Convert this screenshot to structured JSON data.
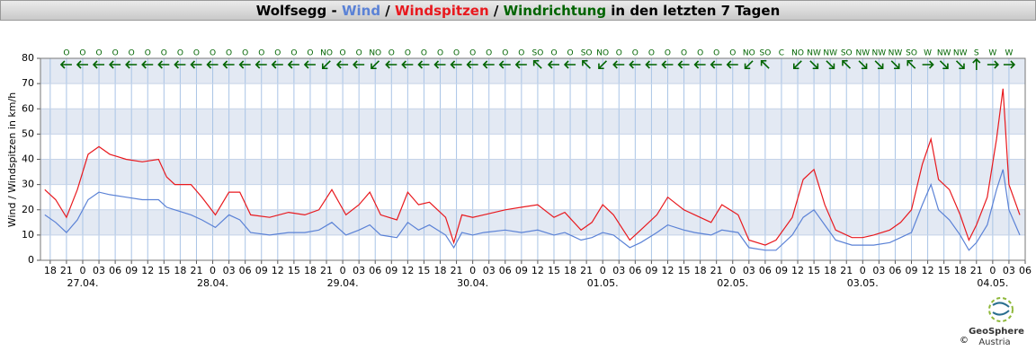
{
  "chart_data": {
    "type": "line",
    "title": [
      "Wolfsegg -",
      "Wind",
      "/",
      "Windspitzen",
      "/",
      "Windrichtung",
      "in den letzten 7 Tagen"
    ],
    "y_label": "Wind / Windspitzen in km/h",
    "x": [
      -7,
      -5,
      -3,
      -1,
      1,
      3,
      5,
      8,
      11,
      14,
      15.5,
      17,
      20,
      22,
      24.5,
      27,
      29,
      31,
      34.5,
      38,
      41,
      43.6,
      46,
      48.6,
      51,
      53,
      55,
      58,
      60,
      62,
      64,
      67,
      68.5,
      70,
      72,
      74,
      78,
      81,
      84,
      87,
      89,
      92,
      94,
      96,
      98,
      101,
      103,
      106,
      108,
      111,
      113,
      116,
      118,
      121,
      123,
      126,
      128,
      131,
      133,
      135,
      137,
      139,
      142,
      144,
      146,
      149,
      151,
      153,
      155,
      156.6,
      158,
      160,
      162,
      163.6,
      165,
      167,
      168.7,
      169.9,
      171,
      173
    ],
    "series": [
      {
        "name": "Wind",
        "color": "#5b82d6",
        "values": [
          18,
          15,
          11,
          16,
          24,
          27,
          26,
          25,
          24,
          24,
          21,
          20,
          18,
          16,
          13,
          18,
          16,
          11,
          10,
          11,
          11,
          12,
          15,
          10,
          12,
          14,
          10,
          9,
          15,
          12,
          14,
          10,
          5,
          11,
          10,
          11,
          12,
          11,
          12,
          10,
          11,
          8,
          9,
          11,
          10,
          5,
          7,
          11,
          14,
          12,
          11,
          10,
          12,
          11,
          5,
          4,
          4,
          10,
          17,
          20,
          14,
          8,
          6,
          6,
          6,
          7,
          9,
          11,
          22,
          30,
          20,
          16,
          10,
          4,
          7,
          14,
          28,
          36,
          20,
          10
        ]
      },
      {
        "name": "Windspitzen",
        "color": "#e8191e",
        "values": [
          28,
          24,
          17,
          28,
          42,
          45,
          42,
          40,
          39,
          40,
          33,
          30,
          30,
          25,
          18,
          27,
          27,
          18,
          17,
          19,
          18,
          20,
          28,
          18,
          22,
          27,
          18,
          16,
          27,
          22,
          23,
          17,
          7,
          18,
          17,
          18,
          20,
          21,
          22,
          17,
          19,
          12,
          15,
          22,
          18,
          8,
          12,
          18,
          25,
          20,
          18,
          15,
          22,
          18,
          8,
          6,
          8,
          17,
          32,
          36,
          22,
          12,
          9,
          9,
          10,
          12,
          15,
          20,
          38,
          48,
          32,
          28,
          18,
          8,
          14,
          25,
          48,
          68,
          30,
          18
        ]
      }
    ],
    "direction_name": "Windrichtung",
    "direction_color": "#006400",
    "directions": {
      "x": [
        -3,
        0,
        3,
        6,
        9,
        12,
        15,
        18,
        21,
        24,
        27,
        30,
        33,
        36,
        39,
        42,
        45,
        48,
        51,
        54,
        57,
        60,
        63,
        66,
        69,
        72,
        75,
        78,
        81,
        84,
        87,
        90,
        93,
        96,
        99,
        102,
        105,
        108,
        111,
        114,
        117,
        120,
        123,
        126,
        129,
        132,
        135,
        138,
        141,
        144,
        147,
        150,
        153,
        156,
        159,
        162,
        165,
        168,
        171
      ],
      "labels": [
        "O",
        "O",
        "O",
        "O",
        "O",
        "O",
        "O",
        "O",
        "O",
        "O",
        "O",
        "O",
        "O",
        "O",
        "O",
        "O",
        "NO",
        "O",
        "O",
        "NO",
        "O",
        "O",
        "O",
        "O",
        "O",
        "O",
        "O",
        "O",
        "O",
        "SO",
        "O",
        "O",
        "SO",
        "NO",
        "O",
        "O",
        "O",
        "O",
        "O",
        "O",
        "O",
        "O",
        "NO",
        "SO",
        "C",
        "NO",
        "NW",
        "NW",
        "SO",
        "NW",
        "NW",
        "NW",
        "SO",
        "W",
        "NW",
        "NW",
        "S",
        "W",
        "W"
      ]
    },
    "xlim": [
      -7.8,
      174
    ],
    "xticks": [
      {
        "value": -6,
        "label": "18"
      },
      {
        "value": -3,
        "label": "21"
      },
      {
        "value": 0,
        "label": "0"
      },
      {
        "value": 3,
        "label": "03"
      },
      {
        "value": 6,
        "label": "06"
      },
      {
        "value": 9,
        "label": "09"
      },
      {
        "value": 12,
        "label": "12"
      },
      {
        "value": 15,
        "label": "15"
      },
      {
        "value": 18,
        "label": "18"
      },
      {
        "value": 21,
        "label": "21"
      },
      {
        "value": 24,
        "label": "0"
      },
      {
        "value": 27,
        "label": "03"
      },
      {
        "value": 30,
        "label": "06"
      },
      {
        "value": 33,
        "label": "09"
      },
      {
        "value": 36,
        "label": "12"
      },
      {
        "value": 39,
        "label": "15"
      },
      {
        "value": 42,
        "label": "18"
      },
      {
        "value": 45,
        "label": "21"
      },
      {
        "value": 48,
        "label": "0"
      },
      {
        "value": 51,
        "label": "03"
      },
      {
        "value": 54,
        "label": "06"
      },
      {
        "value": 57,
        "label": "09"
      },
      {
        "value": 60,
        "label": "12"
      },
      {
        "value": 63,
        "label": "15"
      },
      {
        "value": 66,
        "label": "18"
      },
      {
        "value": 69,
        "label": "21"
      },
      {
        "value": 72,
        "label": "0"
      },
      {
        "value": 75,
        "label": "03"
      },
      {
        "value": 78,
        "label": "06"
      },
      {
        "value": 81,
        "label": "09"
      },
      {
        "value": 84,
        "label": "12"
      },
      {
        "value": 87,
        "label": "15"
      },
      {
        "value": 90,
        "label": "18"
      },
      {
        "value": 93,
        "label": "21"
      },
      {
        "value": 96,
        "label": "0"
      },
      {
        "value": 99,
        "label": "03"
      },
      {
        "value": 102,
        "label": "06"
      },
      {
        "value": 105,
        "label": "09"
      },
      {
        "value": 108,
        "label": "12"
      },
      {
        "value": 111,
        "label": "15"
      },
      {
        "value": 114,
        "label": "18"
      },
      {
        "value": 117,
        "label": "21"
      },
      {
        "value": 120,
        "label": "0"
      },
      {
        "value": 123,
        "label": "03"
      },
      {
        "value": 126,
        "label": "06"
      },
      {
        "value": 129,
        "label": "09"
      },
      {
        "value": 132,
        "label": "12"
      },
      {
        "value": 135,
        "label": "15"
      },
      {
        "value": 138,
        "label": "18"
      },
      {
        "value": 141,
        "label": "21"
      },
      {
        "value": 144,
        "label": "0"
      },
      {
        "value": 147,
        "label": "03"
      },
      {
        "value": 150,
        "label": "06"
      },
      {
        "value": 153,
        "label": "09"
      },
      {
        "value": 156,
        "label": "12"
      },
      {
        "value": 159,
        "label": "15"
      },
      {
        "value": 162,
        "label": "18"
      },
      {
        "value": 165,
        "label": "21"
      },
      {
        "value": 168,
        "label": "0"
      },
      {
        "value": 171,
        "label": "03"
      },
      {
        "value": 174,
        "label": "06"
      }
    ],
    "day_labels": [
      {
        "value": 0,
        "label": "27.04."
      },
      {
        "value": 24,
        "label": "28.04."
      },
      {
        "value": 48,
        "label": "29.04."
      },
      {
        "value": 72,
        "label": "30.04."
      },
      {
        "value": 96,
        "label": "01.05."
      },
      {
        "value": 120,
        "label": "02.05."
      },
      {
        "value": 144,
        "label": "03.05."
      },
      {
        "value": 168,
        "label": "04.05."
      }
    ],
    "ylim": [
      0,
      80
    ],
    "yticks": [
      0,
      10,
      20,
      30,
      40,
      50,
      60,
      70,
      80
    ],
    "grid": true,
    "logo": {
      "name": "GeoSphere",
      "sub": "Austria",
      "copyright": "©"
    }
  }
}
